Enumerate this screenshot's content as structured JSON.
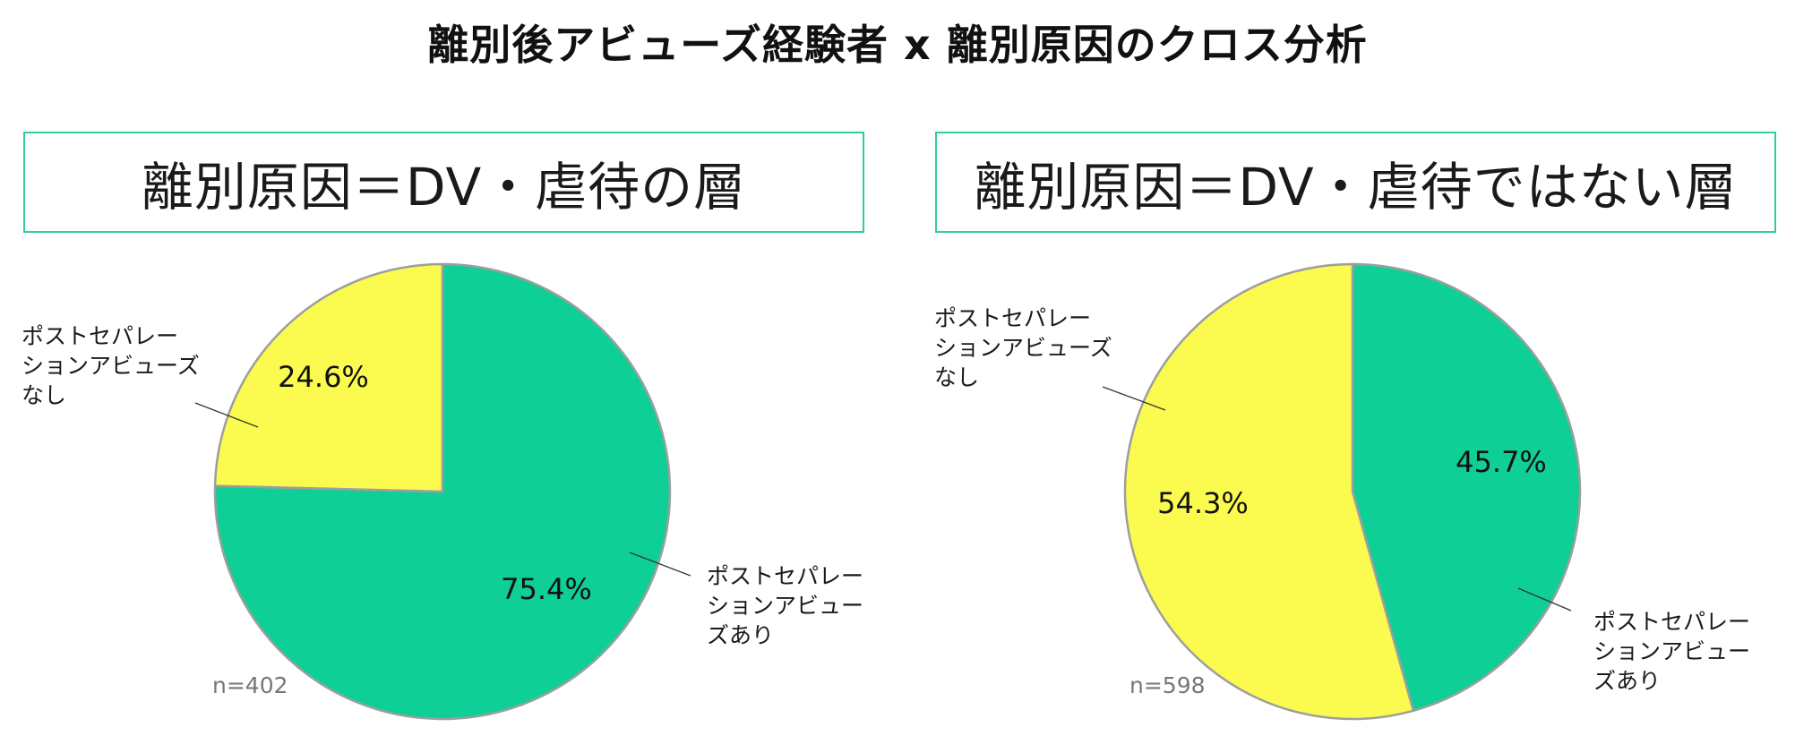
{
  "title": "離別後アビューズ経験者 x 離別原因のクロス分析",
  "colors": {
    "abuse_yes": "#0ecf95",
    "abuse_no": "#fafa4f",
    "border": "#2ecf95",
    "slice_stroke": "#9e9e9e"
  },
  "chart_data": [
    {
      "type": "pie",
      "title": "離別原因＝DV・虐待の層",
      "n_label": "n=402",
      "slices": [
        {
          "label": "ポストセパレーションアビューズあり",
          "label_lines": [
            "ポストセパレー",
            "ションアビュー",
            "ズあり"
          ],
          "value": 75.4,
          "value_label": "75.4%"
        },
        {
          "label": "ポストセパレーションアビューズなし",
          "label_lines": [
            "ポストセパレー",
            "ションアビューズ",
            "なし"
          ],
          "value": 24.6,
          "value_label": "24.6%"
        }
      ]
    },
    {
      "type": "pie",
      "title": "離別原因＝DV・虐待ではない層",
      "n_label": "n=598",
      "slices": [
        {
          "label": "ポストセパレーションアビューズあり",
          "label_lines": [
            "ポストセパレー",
            "ションアビュー",
            "ズあり"
          ],
          "value": 45.7,
          "value_label": "45.7%"
        },
        {
          "label": "ポストセパレーションアビューズなし",
          "label_lines": [
            "ポストセパレー",
            "ションアビューズ",
            "なし"
          ],
          "value": 54.3,
          "value_label": "54.3%"
        }
      ]
    }
  ]
}
